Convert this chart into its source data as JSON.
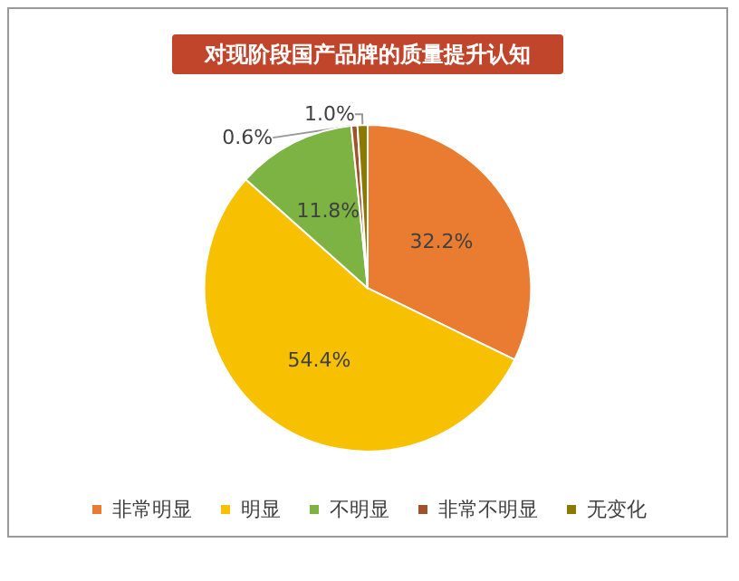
{
  "chart_data": {
    "type": "pie",
    "title": "对现阶段国产品牌的质量提升认知",
    "categories": [
      "非常明显",
      "明显",
      "不明显",
      "非常不明显",
      "无变化"
    ],
    "values": [
      32.2,
      54.4,
      11.8,
      0.6,
      1.0
    ],
    "colors": [
      "#e97c30",
      "#f7c000",
      "#7cb342",
      "#a0522d",
      "#8c7a00"
    ],
    "value_labels": [
      "32.2%",
      "54.4%",
      "11.8%",
      "0.6%",
      "1.0%"
    ],
    "legend": "bottom"
  }
}
